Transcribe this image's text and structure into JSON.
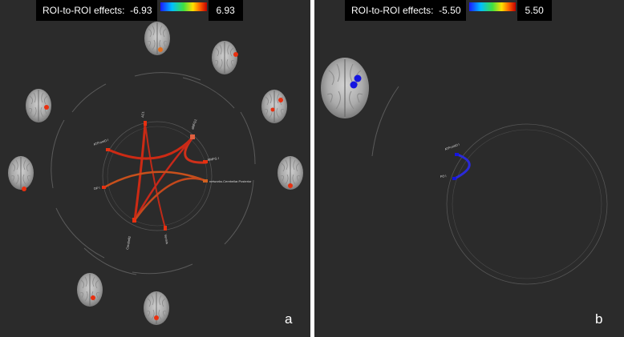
{
  "panels": [
    {
      "id": "a",
      "header": {
        "label": "ROI-to-ROI effects:  -6.93",
        "max": "6.93"
      },
      "letter": "a",
      "colors": {
        "connection": "#cc2a14",
        "connection_alt": "#c8501c",
        "node": "#e83010"
      },
      "roi_labels": [
        "AC1",
        "aMFG1",
        "MidFG l",
        "networks.Cerebellar.Posterior",
        "Vermis",
        "Cerebell2",
        "OP l",
        "ATFrontO l"
      ]
    },
    {
      "id": "b",
      "header": {
        "label": "ROI-to-ROI effects:  -5.50",
        "max": "5.50"
      },
      "letter": "b",
      "colors": {
        "connection": "#2a2ad8",
        "node": "#1414e0"
      },
      "roi_labels": [
        "ATFrontO l",
        "FO l"
      ]
    }
  ]
}
